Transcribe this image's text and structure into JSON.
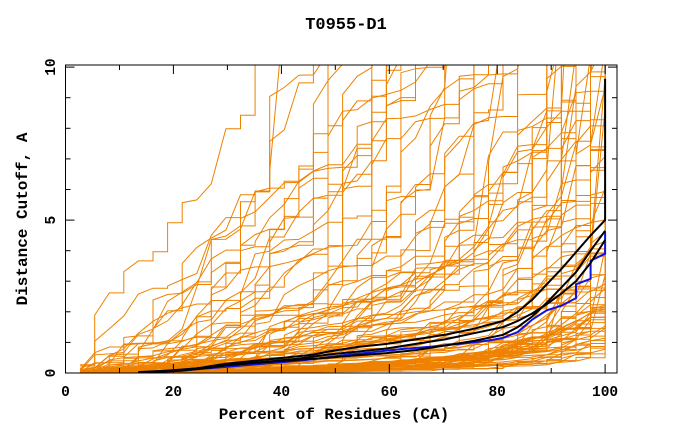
{
  "chart_data": {
    "type": "line",
    "title": "T0955-D1",
    "xlabel": "Percent of Residues (CA)",
    "ylabel": "Distance Cutoff, A",
    "xlim": [
      0,
      102.2
    ],
    "ylim": [
      0,
      10.07
    ],
    "x_major_ticks": [
      0,
      20,
      40,
      60,
      80,
      100
    ],
    "x_minor_ticks": [
      10,
      30,
      50,
      70,
      90
    ],
    "y_major_ticks": [
      0,
      5,
      10
    ],
    "y_minor_ticks": [
      1,
      2,
      3,
      4,
      6,
      7,
      8,
      9
    ],
    "grid": false,
    "legend": "none",
    "frame_color": "#000000",
    "background": "#ffffff",
    "n_residues": 37,
    "series": [
      {
        "name": "model-blue",
        "color": "#1212dd",
        "width": 2,
        "points": [
          [
            16.2,
            0.03
          ],
          [
            21.6,
            0.08
          ],
          [
            24.3,
            0.12
          ],
          [
            29.7,
            0.2
          ],
          [
            35.1,
            0.28
          ],
          [
            40.5,
            0.36
          ],
          [
            45.9,
            0.45
          ],
          [
            51.4,
            0.58
          ],
          [
            56.8,
            0.68
          ],
          [
            62.2,
            0.78
          ],
          [
            67.6,
            0.86
          ],
          [
            73,
            0.95
          ],
          [
            78.4,
            1.06
          ],
          [
            81.1,
            1.15
          ],
          [
            83.8,
            1.34
          ],
          [
            86.5,
            1.75
          ],
          [
            89.2,
            2.05
          ],
          [
            91.9,
            2.2
          ],
          [
            94.6,
            2.45
          ],
          [
            94.6,
            2.9
          ],
          [
            97.3,
            3.08
          ],
          [
            97.3,
            3.67
          ],
          [
            100,
            3.9
          ],
          [
            100,
            4.62
          ]
        ]
      },
      {
        "name": "model-black-3",
        "color": "#000000",
        "width": 2,
        "points": [
          [
            16.2,
            0.04
          ],
          [
            21.6,
            0.1
          ],
          [
            27,
            0.2
          ],
          [
            32.4,
            0.3
          ],
          [
            37.8,
            0.38
          ],
          [
            43.2,
            0.47
          ],
          [
            48.6,
            0.6
          ],
          [
            54.1,
            0.7
          ],
          [
            59.5,
            0.8
          ],
          [
            64.9,
            0.95
          ],
          [
            70.3,
            1.1
          ],
          [
            75.7,
            1.3
          ],
          [
            81.1,
            1.5
          ],
          [
            83.8,
            1.7
          ],
          [
            86.5,
            1.95
          ],
          [
            89.2,
            2.25
          ],
          [
            91.9,
            2.6
          ],
          [
            94.6,
            3.0
          ],
          [
            97.3,
            3.6
          ],
          [
            100,
            4.35
          ]
        ]
      },
      {
        "name": "model-black-2",
        "color": "#000000",
        "width": 2,
        "points": [
          [
            13.5,
            0.02
          ],
          [
            21.6,
            0.08
          ],
          [
            27,
            0.18
          ],
          [
            29.7,
            0.25
          ],
          [
            35.1,
            0.33
          ],
          [
            40.5,
            0.4
          ],
          [
            48.6,
            0.5
          ],
          [
            54.1,
            0.58
          ],
          [
            59.5,
            0.65
          ],
          [
            64.9,
            0.75
          ],
          [
            70.3,
            0.9
          ],
          [
            75.7,
            1.05
          ],
          [
            81.1,
            1.25
          ],
          [
            83.8,
            1.5
          ],
          [
            86.5,
            1.85
          ],
          [
            89.2,
            2.3
          ],
          [
            91.9,
            2.8
          ],
          [
            94.6,
            3.3
          ],
          [
            97.3,
            4.0
          ],
          [
            100,
            4.65
          ]
        ]
      },
      {
        "name": "model-black-1",
        "color": "#000000",
        "width": 2,
        "points": [
          [
            13.5,
            0.03
          ],
          [
            18.9,
            0.08
          ],
          [
            24.3,
            0.15
          ],
          [
            29.7,
            0.3
          ],
          [
            35.1,
            0.4
          ],
          [
            40.5,
            0.5
          ],
          [
            45.9,
            0.6
          ],
          [
            48.6,
            0.7
          ],
          [
            54.1,
            0.85
          ],
          [
            59.5,
            0.95
          ],
          [
            64.9,
            1.1
          ],
          [
            70.3,
            1.25
          ],
          [
            75.7,
            1.45
          ],
          [
            81.1,
            1.7
          ],
          [
            83.8,
            2.0
          ],
          [
            86.5,
            2.4
          ],
          [
            89.2,
            2.9
          ],
          [
            91.9,
            3.4
          ],
          [
            94.6,
            3.95
          ],
          [
            97.3,
            4.5
          ],
          [
            100,
            5.0
          ],
          [
            100,
            9.62
          ]
        ]
      }
    ],
    "decoys": {
      "description": "orange decoy/prediction curves, jagged monotone staircase fan",
      "color": "#ee8200",
      "count": 110,
      "seed": 9550,
      "decent_fraction": 0.6,
      "c_decent": [
        0.12,
        1.25
      ],
      "c_bad": [
        1.25,
        26
      ],
      "g_range": [
        1.35,
        2.05
      ],
      "step_prob": 0.25,
      "big_jump_threshold": 0.8,
      "big_jump_step_prob": 0.7,
      "final_vertical_prob": 0.5,
      "final_vertical_extra": [
        0.8,
        5.0
      ]
    }
  }
}
